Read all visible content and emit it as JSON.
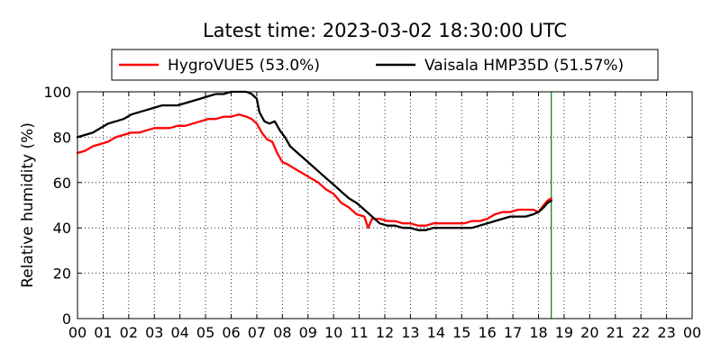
{
  "chart_data": {
    "type": "line",
    "title": "Latest time: 2023-03-02 18:30:00 UTC",
    "xlabel": "",
    "ylabel": "Relative humidity (%)",
    "xlim": [
      0,
      24
    ],
    "ylim": [
      0,
      100
    ],
    "x_ticks": [
      "00",
      "01",
      "02",
      "03",
      "04",
      "05",
      "06",
      "07",
      "08",
      "09",
      "10",
      "11",
      "12",
      "13",
      "14",
      "15",
      "16",
      "17",
      "18",
      "19",
      "20",
      "21",
      "22",
      "23",
      "00"
    ],
    "y_ticks": [
      0,
      20,
      40,
      60,
      80,
      100
    ],
    "grid": true,
    "legend_position": "top",
    "latest_time_marker": {
      "x": 18.5,
      "color": "#008000"
    },
    "series": [
      {
        "name": "HygroVUE5 (53.0%)",
        "color": "#ff0000",
        "x": [
          0,
          0.3,
          0.6,
          0.9,
          1.2,
          1.5,
          1.8,
          2.1,
          2.4,
          2.7,
          3.0,
          3.3,
          3.6,
          3.9,
          4.2,
          4.5,
          4.8,
          5.1,
          5.4,
          5.7,
          6.0,
          6.3,
          6.6,
          6.8,
          7.0,
          7.2,
          7.4,
          7.6,
          7.8,
          8.0,
          8.2,
          8.5,
          8.8,
          9.1,
          9.4,
          9.7,
          10.0,
          10.3,
          10.6,
          10.9,
          11.2,
          11.35,
          11.5,
          11.8,
          12.1,
          12.4,
          12.7,
          13.0,
          13.3,
          13.6,
          13.9,
          14.2,
          14.5,
          14.8,
          15.1,
          15.4,
          15.7,
          16.0,
          16.3,
          16.6,
          16.9,
          17.2,
          17.5,
          17.8,
          18.0,
          18.2,
          18.35,
          18.5
        ],
        "values": [
          73,
          74,
          76,
          77,
          78,
          80,
          81,
          82,
          82,
          83,
          84,
          84,
          84,
          85,
          85,
          86,
          87,
          88,
          88,
          89,
          89,
          90,
          89,
          88,
          86,
          82,
          79,
          78,
          73,
          69,
          68,
          66,
          64,
          62,
          60,
          57,
          55,
          51,
          49,
          46,
          45,
          40,
          44,
          44,
          43,
          43,
          42,
          42,
          41,
          41,
          42,
          42,
          42,
          42,
          42,
          43,
          43,
          44,
          46,
          47,
          47,
          48,
          48,
          48,
          47,
          50,
          52,
          53
        ]
      },
      {
        "name": "Vaisala HMP35D (51.57%)",
        "color": "#000000",
        "x": [
          0,
          0.3,
          0.6,
          0.9,
          1.2,
          1.5,
          1.8,
          2.1,
          2.4,
          2.7,
          3.0,
          3.3,
          3.6,
          3.9,
          4.2,
          4.5,
          4.8,
          5.1,
          5.4,
          5.7,
          6.0,
          6.3,
          6.6,
          6.8,
          7.0,
          7.1,
          7.3,
          7.5,
          7.7,
          7.9,
          8.1,
          8.3,
          8.5,
          8.8,
          9.1,
          9.4,
          9.7,
          10.0,
          10.3,
          10.6,
          10.9,
          11.2,
          11.5,
          11.8,
          12.1,
          12.4,
          12.7,
          13.0,
          13.3,
          13.6,
          13.9,
          14.2,
          14.5,
          14.8,
          15.1,
          15.4,
          15.7,
          16.0,
          16.3,
          16.6,
          16.9,
          17.2,
          17.5,
          17.8,
          18.0,
          18.2,
          18.35,
          18.5
        ],
        "values": [
          80,
          81,
          82,
          84,
          86,
          87,
          88,
          90,
          91,
          92,
          93,
          94,
          94,
          94,
          95,
          96,
          97,
          98,
          99,
          99,
          100,
          100,
          100,
          99,
          97,
          91,
          87,
          86,
          87,
          83,
          80,
          76,
          74,
          71,
          68,
          65,
          62,
          59,
          56,
          53,
          51,
          48,
          45,
          42,
          41,
          41,
          40,
          40,
          39,
          39,
          40,
          40,
          40,
          40,
          40,
          40,
          41,
          42,
          43,
          44,
          45,
          45,
          45,
          46,
          47,
          49,
          51,
          52
        ]
      }
    ]
  }
}
